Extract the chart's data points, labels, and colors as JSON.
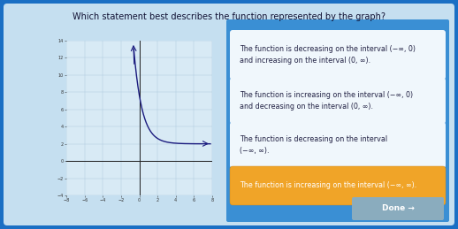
{
  "title": "Which statement best describes the function represented by the graph?",
  "title_fontsize": 7.0,
  "bg_outer": "#1a6fc4",
  "bg_panel": "#c5dff0",
  "bg_answer_area": "#3a8fd4",
  "bg_answer_box": "#eef5fa",
  "bg_selected": "#f0a428",
  "answers": [
    "The function is decreasing on the interval (−∞, 0)\nand increasing on the interval (0, ∞).",
    "The function is increasing on the interval (−∞, 0)\nand decreasing on the interval (0, ∞).",
    "The function is decreasing on the interval\n(−∞, ∞).",
    "The function is increasing on the interval (−∞, ∞)."
  ],
  "selected_index": 3,
  "answer_fontsize": 5.8,
  "graph_xlim": [
    -8,
    8
  ],
  "graph_ylim": [
    -4,
    14
  ],
  "graph_xticks": [
    -8,
    -6,
    -4,
    -2,
    0,
    2,
    4,
    6,
    8
  ],
  "graph_yticks": [
    -4,
    -2,
    0,
    2,
    4,
    6,
    8,
    10,
    12,
    14
  ],
  "curve_color": "#1a1a7e",
  "axis_color": "#222222",
  "grid_color": "#b0cce0",
  "tick_label_fontsize": 3.5,
  "done_button_color": "#8aacbe",
  "done_text": "Done →"
}
